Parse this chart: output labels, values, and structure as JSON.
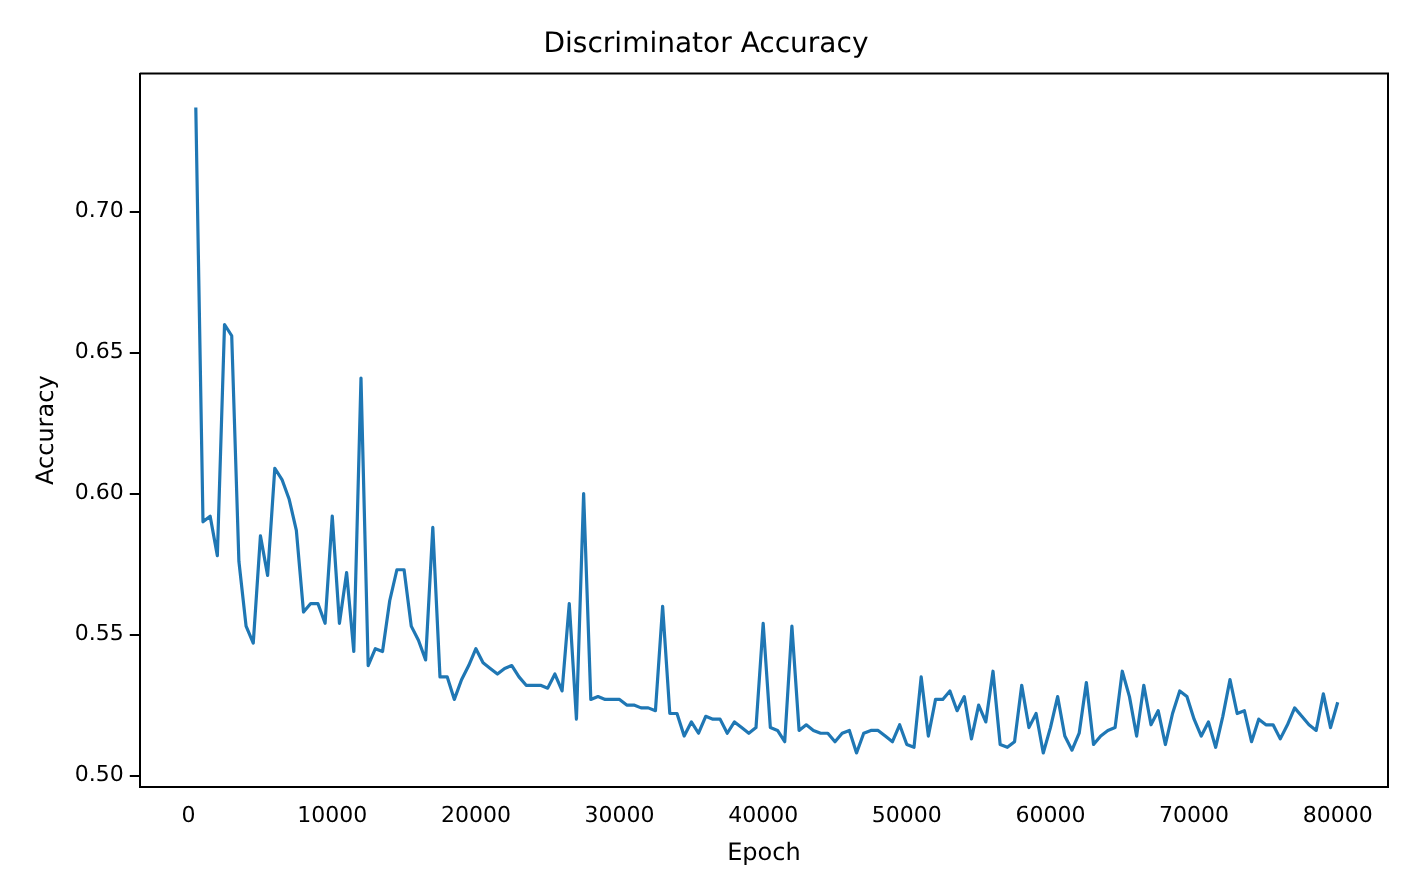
{
  "chart_data": {
    "type": "line",
    "title": "Discriminator Accuracy",
    "xlabel": "Epoch",
    "ylabel": "Accuracy",
    "grid": false,
    "legend": false,
    "marker": "none",
    "line_style": "solid",
    "xlim": [
      -3400,
      83500
    ],
    "xticks": [
      0,
      10000,
      20000,
      30000,
      40000,
      50000,
      60000,
      70000,
      80000
    ],
    "ylim": [
      0.496,
      0.749
    ],
    "yticks": [
      {
        "value": 0.5,
        "label": "0.50"
      },
      {
        "value": 0.55,
        "label": "0.55"
      },
      {
        "value": 0.6,
        "label": "0.60"
      },
      {
        "value": 0.65,
        "label": "0.65"
      },
      {
        "value": 0.7,
        "label": "0.70"
      }
    ],
    "x": [
      500,
      1000,
      1500,
      2000,
      2500,
      3000,
      3500,
      4000,
      4500,
      5000,
      5500,
      6000,
      6500,
      7000,
      7500,
      8000,
      8500,
      9000,
      9500,
      10000,
      10500,
      11000,
      11500,
      12000,
      12500,
      13000,
      13500,
      14000,
      14500,
      15000,
      15500,
      16000,
      16500,
      17000,
      17500,
      18000,
      18500,
      19000,
      19500,
      20000,
      20500,
      21000,
      21500,
      22000,
      22500,
      23000,
      23500,
      24000,
      24500,
      25000,
      25500,
      26000,
      26500,
      27000,
      27500,
      28000,
      28500,
      29000,
      29500,
      30000,
      30500,
      31000,
      31500,
      32000,
      32500,
      33000,
      33500,
      34000,
      34500,
      35000,
      35500,
      36000,
      36500,
      37000,
      37500,
      38000,
      38500,
      39000,
      39500,
      40000,
      40500,
      41000,
      41500,
      42000,
      42500,
      43000,
      43500,
      44000,
      44500,
      45000,
      45500,
      46000,
      46500,
      47000,
      47500,
      48000,
      48500,
      49000,
      49500,
      50000,
      50500,
      51000,
      51500,
      52000,
      52500,
      53000,
      53500,
      54000,
      54500,
      55000,
      55500,
      56000,
      56500,
      57000,
      57500,
      58000,
      58500,
      59000,
      59500,
      60000,
      60500,
      61000,
      61500,
      62000,
      62500,
      63000,
      63500,
      64000,
      64500,
      65000,
      65500,
      66000,
      66500,
      67000,
      67500,
      68000,
      68500,
      69000,
      69500,
      70000,
      70500,
      71000,
      71500,
      72000,
      72500,
      73000,
      73500,
      74000,
      74500,
      75000,
      75500,
      76000,
      76500,
      77000,
      77500,
      78000,
      78500,
      79000,
      79500,
      80000
    ],
    "series": [
      {
        "color": "#1f77b4",
        "values": [
          0.737,
          0.59,
          0.592,
          0.578,
          0.66,
          0.656,
          0.576,
          0.553,
          0.547,
          0.585,
          0.571,
          0.609,
          0.605,
          0.598,
          0.587,
          0.558,
          0.561,
          0.561,
          0.554,
          0.592,
          0.554,
          0.572,
          0.544,
          0.641,
          0.539,
          0.545,
          0.544,
          0.562,
          0.573,
          0.573,
          0.553,
          0.548,
          0.541,
          0.588,
          0.535,
          0.535,
          0.527,
          0.534,
          0.539,
          0.545,
          0.54,
          0.538,
          0.536,
          0.538,
          0.539,
          0.535,
          0.532,
          0.532,
          0.532,
          0.531,
          0.536,
          0.53,
          0.561,
          0.52,
          0.6,
          0.527,
          0.528,
          0.527,
          0.527,
          0.527,
          0.525,
          0.525,
          0.524,
          0.524,
          0.523,
          0.56,
          0.522,
          0.522,
          0.514,
          0.519,
          0.515,
          0.521,
          0.52,
          0.52,
          0.515,
          0.519,
          0.517,
          0.515,
          0.517,
          0.554,
          0.517,
          0.516,
          0.512,
          0.553,
          0.516,
          0.518,
          0.516,
          0.515,
          0.515,
          0.512,
          0.515,
          0.516,
          0.508,
          0.515,
          0.516,
          0.516,
          0.514,
          0.512,
          0.518,
          0.511,
          0.51,
          0.535,
          0.514,
          0.527,
          0.527,
          0.53,
          0.523,
          0.528,
          0.513,
          0.525,
          0.519,
          0.537,
          0.511,
          0.51,
          0.512,
          0.532,
          0.517,
          0.522,
          0.508,
          0.517,
          0.528,
          0.514,
          0.509,
          0.515,
          0.533,
          0.511,
          0.514,
          0.516,
          0.517,
          0.537,
          0.528,
          0.514,
          0.532,
          0.518,
          0.523,
          0.511,
          0.522,
          0.53,
          0.528,
          0.52,
          0.514,
          0.519,
          0.51,
          0.521,
          0.534,
          0.522,
          0.523,
          0.512,
          0.52,
          0.518,
          0.518,
          0.513,
          0.518,
          0.524,
          0.521,
          0.518,
          0.516,
          0.529,
          0.517,
          0.526
        ]
      }
    ]
  }
}
